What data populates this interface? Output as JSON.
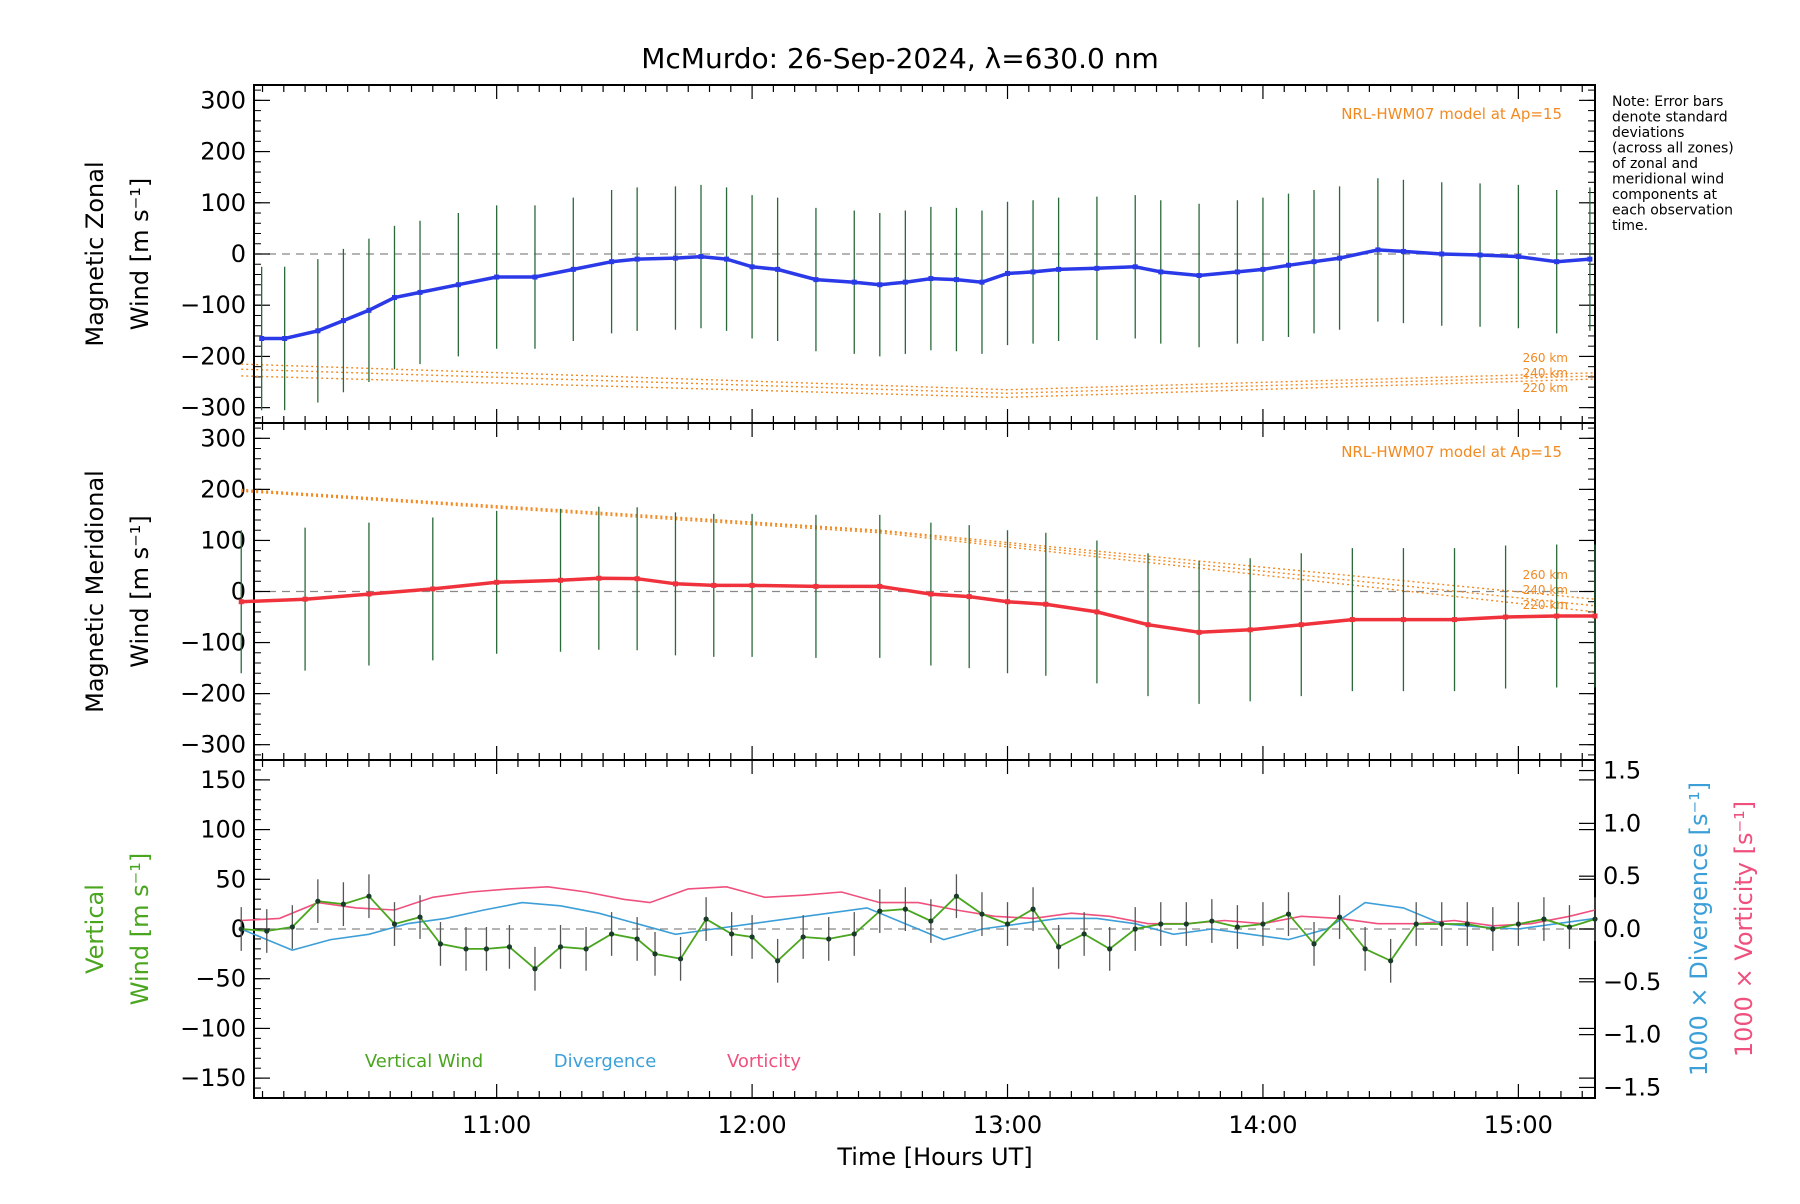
{
  "title": "McMurdo: 26-Sep-2024, λ=630.0 nm",
  "note_lines": [
    "Note: Error bars",
    "denote standard",
    "deviations",
    "(across all zones)",
    "of zonal and",
    "meridional wind",
    "components at",
    "each observation",
    "time."
  ],
  "colors": {
    "zonal": "#2b3ae8",
    "meridional": "#f0323c",
    "vertical": "#4aa51f",
    "divergence": "#3d9fd8",
    "vorticity": "#f0507e",
    "model": "#f28a22",
    "errorbar": "#222222"
  },
  "chart_data": [
    {
      "type": "line",
      "panel": "zonal",
      "ylabel_line1": "Magnetic Zonal",
      "ylabel_line2": "Wind [m s⁻¹]",
      "ylim": [
        -330,
        330
      ],
      "yticks": [
        "300",
        "200",
        "100",
        "0",
        "−100",
        "−200",
        "−300"
      ],
      "yticks_values": [
        300,
        200,
        100,
        0,
        -100,
        -200,
        -300
      ],
      "model_label": "NRL-HWM07 model at Ap=15",
      "altitude_labels": [
        "260 km",
        "240 km",
        "220 km"
      ],
      "series": [
        {
          "x": [
            10.08,
            10.17,
            10.3,
            10.4,
            10.5,
            10.6,
            10.7,
            10.85,
            11.0,
            11.15,
            11.3,
            11.45,
            11.55,
            11.7,
            11.8,
            11.9,
            12.0,
            12.1,
            12.25,
            12.4,
            12.5,
            12.6,
            12.7,
            12.8,
            12.9,
            13.0,
            13.1,
            13.2,
            13.35,
            13.5,
            13.6,
            13.75,
            13.9,
            14.0,
            14.1,
            14.2,
            14.3,
            14.45,
            14.55,
            14.7,
            14.85,
            15.0,
            15.15,
            15.28
          ],
          "values": [
            -165,
            -165,
            -150,
            -130,
            -110,
            -85,
            -75,
            -60,
            -45,
            -45,
            -30,
            -15,
            -10,
            -8,
            -5,
            -10,
            -25,
            -30,
            -50,
            -55,
            -60,
            -55,
            -48,
            -50,
            -55,
            -38,
            -35,
            -30,
            -28,
            -25,
            -35,
            -42,
            -35,
            -30,
            -22,
            -15,
            -8,
            8,
            5,
            0,
            -2,
            -5,
            -15,
            -10
          ]
        }
      ],
      "model": [
        {
          "name": "260 km",
          "x": [
            10.0,
            13.0,
            15.3
          ],
          "values": [
            -215,
            -265,
            -232
          ]
        },
        {
          "name": "240 km",
          "x": [
            10.0,
            13.0,
            15.3
          ],
          "values": [
            -225,
            -272,
            -238
          ]
        },
        {
          "name": "220 km",
          "x": [
            10.0,
            13.0,
            15.3
          ],
          "values": [
            -238,
            -280,
            -244
          ]
        }
      ]
    },
    {
      "type": "line",
      "panel": "meridional",
      "ylabel_line1": "Magnetic Meridional",
      "ylabel_line2": "Wind [m s⁻¹]",
      "ylim": [
        -330,
        330
      ],
      "yticks": [
        "300",
        "200",
        "100",
        "0",
        "−100",
        "−200",
        "−300"
      ],
      "yticks_values": [
        300,
        200,
        100,
        0,
        -100,
        -200,
        -300
      ],
      "model_label": "NRL-HWM07 model at Ap=15",
      "altitude_labels": [
        "260 km",
        "240 km",
        "220 km"
      ],
      "series": [
        {
          "x": [
            10.0,
            10.25,
            10.5,
            10.75,
            11.0,
            11.25,
            11.4,
            11.55,
            11.7,
            11.85,
            12.0,
            12.25,
            12.5,
            12.7,
            12.85,
            13.0,
            13.15,
            13.35,
            13.55,
            13.75,
            13.95,
            14.15,
            14.35,
            14.55,
            14.75,
            14.95,
            15.15,
            15.3
          ],
          "values": [
            -20,
            -15,
            -5,
            5,
            18,
            22,
            26,
            25,
            15,
            12,
            12,
            10,
            10,
            -5,
            -10,
            -20,
            -25,
            -40,
            -65,
            -80,
            -75,
            -65,
            -55,
            -55,
            -55,
            -50,
            -48,
            -48
          ]
        }
      ],
      "model": [
        {
          "name": "260 km",
          "x": [
            10.0,
            12.5,
            15.3
          ],
          "values": [
            200,
            120,
            -15
          ]
        },
        {
          "name": "240 km",
          "x": [
            10.0,
            12.5,
            15.3
          ],
          "values": [
            198,
            118,
            -28
          ]
        },
        {
          "name": "220 km",
          "x": [
            10.0,
            12.5,
            15.3
          ],
          "values": [
            196,
            115,
            -40
          ]
        }
      ]
    },
    {
      "type": "line",
      "panel": "vertical",
      "ylabel_line1": "Vertical",
      "ylabel_line2": "Wind [m s⁻¹]",
      "ylim": [
        -170,
        170
      ],
      "yticks": [
        "150",
        "100",
        "50",
        "0",
        "−50",
        "−100",
        "−150"
      ],
      "yticks_values": [
        150,
        100,
        50,
        0,
        -50,
        -100,
        -150
      ],
      "y2_label_div": "1000 × Divergence [s⁻¹]",
      "y2_label_vort": "1000 × Vorticity [s⁻¹]",
      "y2lim": [
        -1.6,
        1.6
      ],
      "y2ticks": [
        "1.5",
        "1.0",
        "0.5",
        "0.0",
        "−0.5",
        "−1.0",
        "−1.5"
      ],
      "y2ticks_values": [
        1.5,
        1.0,
        0.5,
        0.0,
        -0.5,
        -1.0,
        -1.5
      ],
      "legend": [
        "Vertical Wind",
        "Divergence",
        "Vorticity"
      ],
      "series": [
        {
          "name": "Vertical Wind",
          "x": [
            10.0,
            10.1,
            10.2,
            10.3,
            10.4,
            10.5,
            10.6,
            10.7,
            10.78,
            10.88,
            10.96,
            11.05,
            11.15,
            11.25,
            11.35,
            11.45,
            11.55,
            11.62,
            11.72,
            11.82,
            11.92,
            12.0,
            12.1,
            12.2,
            12.3,
            12.4,
            12.5,
            12.6,
            12.7,
            12.8,
            12.9,
            13.0,
            13.1,
            13.2,
            13.3,
            13.4,
            13.5,
            13.6,
            13.7,
            13.8,
            13.9,
            14.0,
            14.1,
            14.2,
            14.3,
            14.4,
            14.5,
            14.6,
            14.7,
            14.8,
            14.9,
            15.0,
            15.1,
            15.2,
            15.3
          ],
          "values": [
            0,
            -2,
            2,
            28,
            25,
            33,
            5,
            12,
            -15,
            -20,
            -20,
            -18,
            -40,
            -18,
            -20,
            -5,
            -10,
            -25,
            -30,
            10,
            -5,
            -8,
            -32,
            -8,
            -10,
            -5,
            18,
            20,
            8,
            33,
            15,
            5,
            20,
            -18,
            -5,
            -20,
            0,
            5,
            5,
            8,
            2,
            5,
            15,
            -15,
            12,
            -20,
            -32,
            5,
            5,
            5,
            0,
            5,
            10,
            2,
            10
          ]
        },
        {
          "name": "Divergence",
          "x": [
            10.0,
            10.1,
            10.2,
            10.35,
            10.5,
            10.65,
            10.8,
            10.95,
            11.1,
            11.25,
            11.4,
            11.55,
            11.7,
            11.85,
            12.0,
            12.15,
            12.3,
            12.45,
            12.6,
            12.75,
            12.9,
            13.05,
            13.2,
            13.35,
            13.5,
            13.65,
            13.8,
            13.95,
            14.1,
            14.25,
            14.4,
            14.55,
            14.7,
            14.85,
            15.0,
            15.15,
            15.3
          ],
          "values": [
            0.0,
            -0.1,
            -0.2,
            -0.1,
            -0.05,
            0.05,
            0.1,
            0.18,
            0.25,
            0.22,
            0.15,
            0.05,
            -0.05,
            0.0,
            0.05,
            0.1,
            0.15,
            0.2,
            0.05,
            -0.1,
            0.0,
            0.05,
            0.1,
            0.1,
            0.05,
            -0.05,
            0.0,
            -0.05,
            -0.1,
            0.0,
            0.25,
            0.2,
            0.05,
            0.02,
            0.0,
            0.05,
            0.1
          ]
        },
        {
          "name": "Vorticity",
          "x": [
            10.0,
            10.15,
            10.3,
            10.45,
            10.6,
            10.75,
            10.9,
            11.05,
            11.2,
            11.35,
            11.5,
            11.6,
            11.75,
            11.9,
            12.05,
            12.2,
            12.35,
            12.5,
            12.65,
            12.8,
            12.95,
            13.1,
            13.25,
            13.4,
            13.55,
            13.7,
            13.85,
            14.0,
            14.15,
            14.3,
            14.45,
            14.6,
            14.75,
            14.9,
            15.05,
            15.2,
            15.3
          ],
          "values": [
            0.08,
            0.1,
            0.25,
            0.2,
            0.18,
            0.3,
            0.35,
            0.38,
            0.4,
            0.35,
            0.28,
            0.25,
            0.38,
            0.4,
            0.3,
            0.32,
            0.35,
            0.25,
            0.25,
            0.18,
            0.12,
            0.1,
            0.15,
            0.12,
            0.05,
            0.05,
            0.08,
            0.05,
            0.12,
            0.1,
            0.05,
            0.05,
            0.08,
            0.03,
            0.05,
            0.12,
            0.18
          ]
        }
      ]
    }
  ],
  "x_axis": {
    "label": "Time [Hours UT]",
    "xlim": [
      10.05,
      15.3
    ],
    "ticks_values": [
      11,
      12,
      13,
      14,
      15
    ],
    "ticks": [
      "11:00",
      "12:00",
      "13:00",
      "14:00",
      "15:00"
    ]
  }
}
